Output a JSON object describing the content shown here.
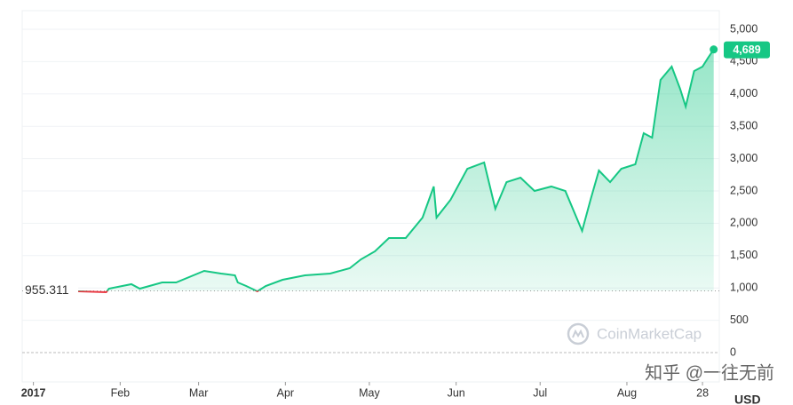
{
  "chart_data": {
    "type": "line",
    "x": [
      17,
      27,
      28,
      36,
      39,
      47,
      52,
      62,
      68,
      73,
      74,
      77,
      81,
      84,
      90,
      98,
      107,
      114,
      118,
      123,
      128,
      134,
      140,
      144,
      145,
      150,
      156,
      162,
      166,
      170,
      175,
      180,
      186,
      191,
      197,
      200,
      203,
      207,
      211,
      216,
      219,
      222,
      225,
      229,
      232,
      234,
      237,
      240,
      242,
      244
    ],
    "series": [
      {
        "name": "USD",
        "color": "#16c784",
        "values": [
          948,
          934,
          989,
          1058,
          989,
          1085,
          1085,
          1264,
          1223,
          1195,
          1085,
          1030,
          948,
          1030,
          1126,
          1195,
          1223,
          1305,
          1442,
          1566,
          1772,
          1772,
          2088,
          2569,
          2088,
          2363,
          2843,
          2940,
          2225,
          2637,
          2706,
          2500,
          2569,
          2500,
          1882,
          2363,
          2816,
          2637,
          2843,
          2912,
          3393,
          3324,
          4217,
          4423,
          4080,
          3805,
          4354,
          4423,
          4560,
          4689
        ]
      }
    ],
    "down_color": "#ea3943",
    "last_value_label": "4,689",
    "reference": 955.311,
    "xlim": [
      -3,
      246
    ],
    "xticks": [
      {
        "value": 1,
        "label": "2017"
      },
      {
        "value": 32,
        "label": "Feb"
      },
      {
        "value": 60,
        "label": "Mar"
      },
      {
        "value": 91,
        "label": "Apr"
      },
      {
        "value": 121,
        "label": "May"
      },
      {
        "value": 152,
        "label": "Jun"
      },
      {
        "value": 182,
        "label": "Jul"
      },
      {
        "value": 213,
        "label": "Aug"
      },
      {
        "value": 240,
        "label": "28"
      }
    ],
    "ylim": [
      0,
      5000
    ],
    "yticks": [
      0,
      500,
      {
        "value": 1000,
        "label": "1,000"
      },
      {
        "value": 1500,
        "label": "1,500"
      },
      {
        "value": 2000,
        "label": "2,000"
      },
      {
        "value": 2500,
        "label": "2,500"
      },
      {
        "value": 3000,
        "label": "3,000"
      },
      {
        "value": 3500,
        "label": "3,500"
      },
      {
        "value": 4000,
        "label": "4,000"
      },
      {
        "value": 4500,
        "label": "4,500"
      },
      {
        "value": 5000,
        "label": "5,000"
      }
    ],
    "y_axis_label": "USD",
    "grid": true,
    "watermark": "CoinMarketCap",
    "credit": "知乎 @一往无前"
  }
}
